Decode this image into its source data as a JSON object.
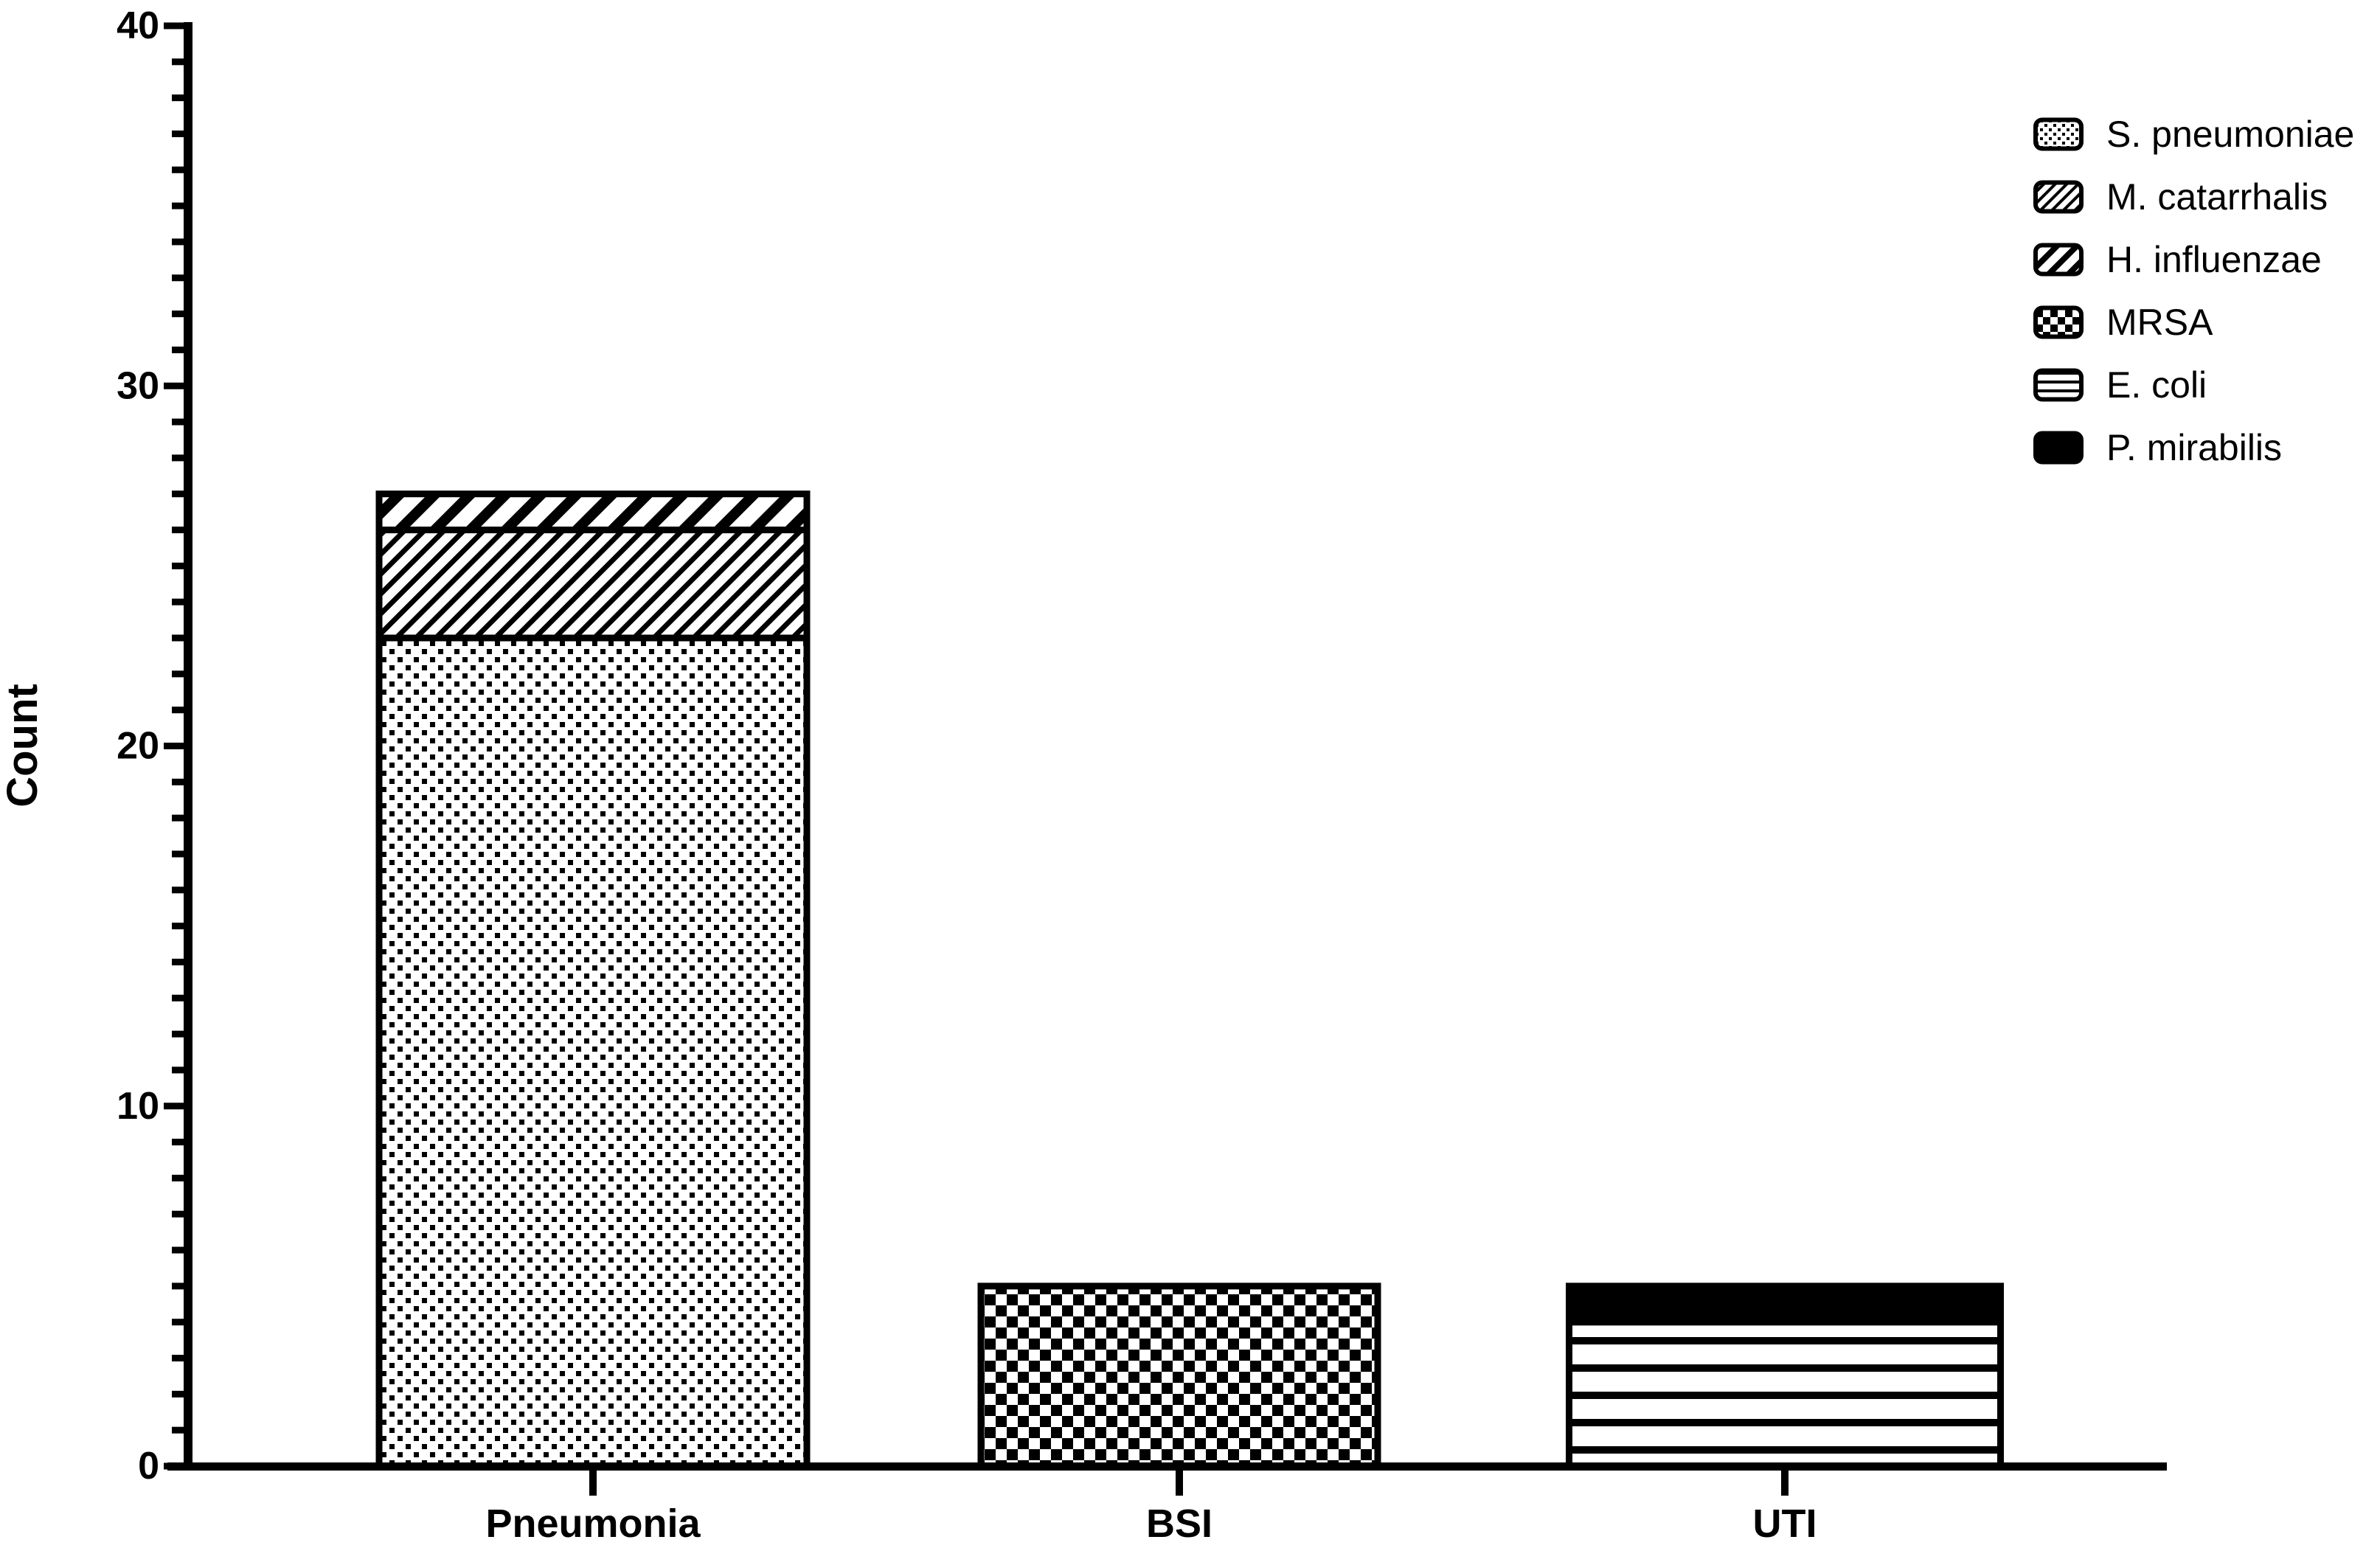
{
  "figure": {
    "background_color": "#ffffff",
    "ink_color": "#000000"
  },
  "chart_data": {
    "type": "bar",
    "stacked": true,
    "title": "",
    "xlabel": "",
    "ylabel": "Count",
    "ylim": [
      0,
      40
    ],
    "yticks_major": [
      0,
      10,
      20,
      30,
      40
    ],
    "ytick_minor_step": 1,
    "grid": false,
    "legend_position": "top-right",
    "categories": [
      "Pneumonia",
      "BSI",
      "UTI"
    ],
    "series": [
      {
        "name": "S. pneumoniae",
        "fill_style": "stipple-dots",
        "color": "#000000",
        "values": [
          23,
          0,
          0
        ]
      },
      {
        "name": "M. catarrhalis",
        "fill_style": "diagonal-hatch-fine",
        "color": "#000000",
        "values": [
          3,
          0,
          0
        ]
      },
      {
        "name": "H. influenzae",
        "fill_style": "diagonal-hatch-coarse",
        "color": "#000000",
        "values": [
          1,
          0,
          0
        ]
      },
      {
        "name": "MRSA",
        "fill_style": "checkerboard",
        "color": "#000000",
        "values": [
          0,
          5,
          0
        ]
      },
      {
        "name": "E. coli",
        "fill_style": "horizontal-lines",
        "color": "#000000",
        "values": [
          0,
          0,
          4
        ]
      },
      {
        "name": "P. mirabilis",
        "fill_style": "solid-black",
        "color": "#000000",
        "values": [
          0,
          0,
          1
        ]
      }
    ],
    "category_totals": [
      27,
      5,
      5
    ]
  }
}
